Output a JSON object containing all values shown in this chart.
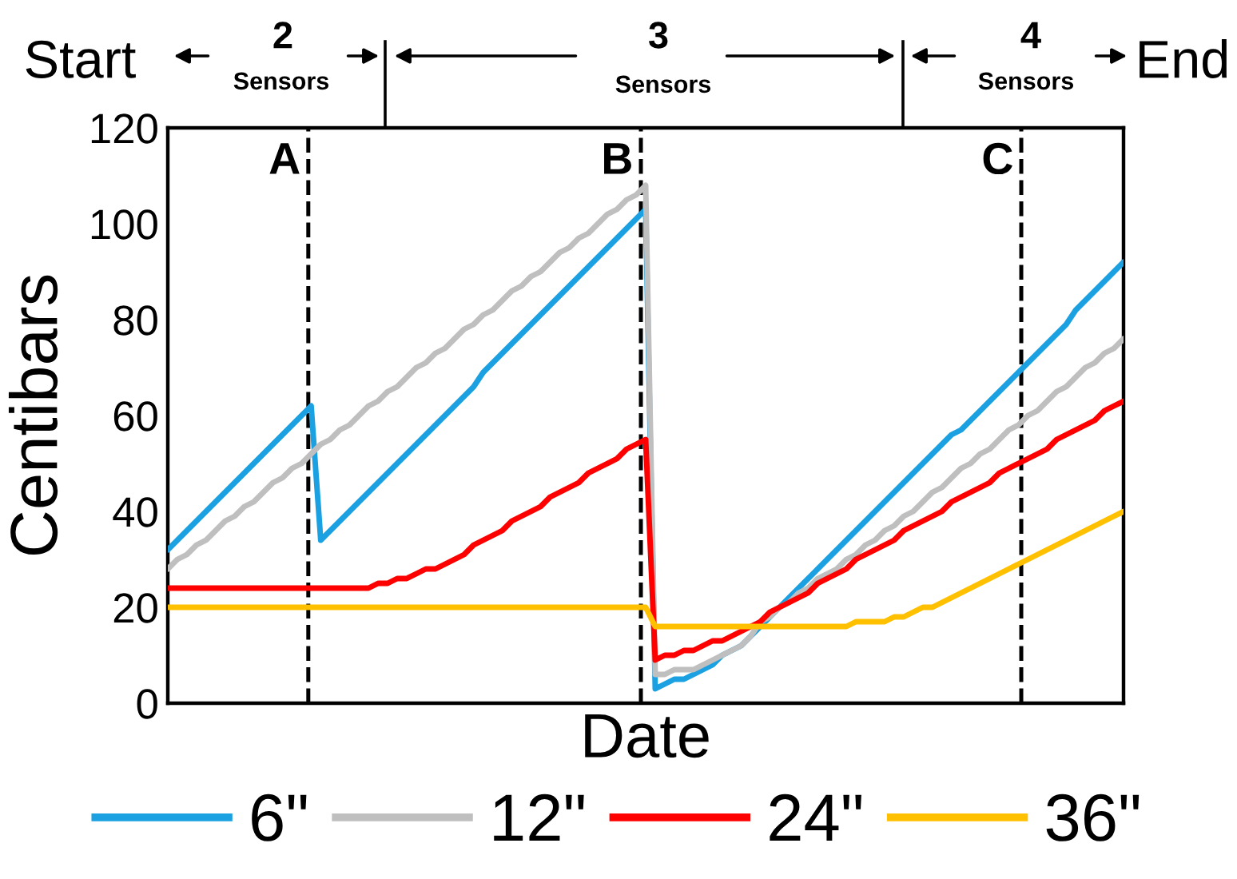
{
  "chart_data": {
    "type": "line",
    "xlabel": "Date",
    "ylabel": "Centibars",
    "categories": [
      null,
      null,
      null,
      null,
      null,
      null,
      null,
      null,
      null,
      null,
      null,
      null,
      null,
      null,
      null,
      null,
      null,
      null,
      null,
      null,
      null,
      null,
      null,
      null,
      null,
      null,
      null,
      null,
      null,
      null,
      null,
      null,
      null,
      null,
      null,
      null,
      null,
      null,
      null,
      null,
      null,
      null,
      null,
      null,
      null,
      null,
      null,
      null,
      null,
      null,
      null,
      null,
      null,
      null,
      null,
      null,
      null,
      null,
      null,
      null,
      null,
      null,
      null,
      null,
      null,
      null,
      null,
      null,
      null,
      null,
      null,
      null,
      null,
      null,
      null,
      null,
      null,
      null,
      null,
      null,
      null,
      null,
      null,
      null,
      null,
      null,
      null,
      null,
      null,
      null,
      null,
      null,
      null,
      null,
      null,
      null,
      null,
      null,
      null,
      null,
      null
    ],
    "ylim": [
      0,
      120
    ],
    "yticks": [
      0,
      20,
      40,
      60,
      80,
      100,
      120
    ],
    "tick_labels": "y",
    "grid": false,
    "legend": "bottom",
    "line_style": "solid",
    "marker": "none",
    "series": [
      {
        "name": "6\"",
        "color": "#1ba1e2",
        "values": [
          32,
          34,
          36,
          38,
          40,
          42,
          44,
          46,
          48,
          50,
          52,
          54,
          56,
          58,
          60,
          62,
          34,
          36,
          38,
          40,
          42,
          44,
          46,
          48,
          50,
          52,
          54,
          56,
          58,
          60,
          62,
          64,
          66,
          69,
          71,
          73,
          75,
          77,
          79,
          81,
          83,
          85,
          87,
          89,
          91,
          93,
          95,
          97,
          99,
          101,
          103,
          3,
          4,
          5,
          5,
          6,
          7,
          8,
          10,
          11,
          12,
          14,
          16,
          18,
          20,
          22,
          24,
          26,
          28,
          30,
          32,
          34,
          36,
          38,
          40,
          42,
          44,
          46,
          48,
          50,
          52,
          54,
          56,
          57,
          59,
          61,
          63,
          65,
          67,
          69,
          71,
          73,
          75,
          77,
          79,
          82,
          84,
          86,
          88,
          90,
          92
        ]
      },
      {
        "name": "12\"",
        "color": "#bfbfbf",
        "values": [
          28,
          30,
          31,
          33,
          34,
          36,
          38,
          39,
          41,
          42,
          44,
          46,
          47,
          49,
          50,
          52,
          54,
          55,
          57,
          58,
          60,
          62,
          63,
          65,
          66,
          68,
          70,
          71,
          73,
          74,
          76,
          78,
          79,
          81,
          82,
          84,
          86,
          87,
          89,
          90,
          92,
          94,
          95,
          97,
          98,
          100,
          102,
          103,
          105,
          106,
          108,
          6,
          6,
          7,
          7,
          7,
          8,
          9,
          10,
          11,
          12,
          14,
          17,
          18,
          20,
          21,
          23,
          24,
          26,
          27,
          28,
          30,
          31,
          33,
          34,
          36,
          37,
          39,
          40,
          42,
          44,
          45,
          47,
          49,
          50,
          52,
          53,
          55,
          57,
          58,
          60,
          61,
          63,
          65,
          66,
          68,
          70,
          71,
          73,
          74,
          76
        ]
      },
      {
        "name": "24\"",
        "color": "#ff0000",
        "values": [
          24,
          24,
          24,
          24,
          24,
          24,
          24,
          24,
          24,
          24,
          24,
          24,
          24,
          24,
          24,
          24,
          24,
          24,
          24,
          24,
          24,
          24,
          25,
          25,
          26,
          26,
          27,
          28,
          28,
          29,
          30,
          31,
          33,
          34,
          35,
          36,
          38,
          39,
          40,
          41,
          43,
          44,
          45,
          46,
          48,
          49,
          50,
          51,
          53,
          54,
          55,
          9,
          10,
          10,
          11,
          11,
          12,
          13,
          13,
          14,
          15,
          16,
          17,
          19,
          20,
          21,
          22,
          23,
          25,
          26,
          27,
          28,
          30,
          31,
          32,
          33,
          34,
          36,
          37,
          38,
          39,
          40,
          42,
          43,
          44,
          45,
          46,
          48,
          49,
          50,
          51,
          52,
          53,
          55,
          56,
          57,
          58,
          59,
          61,
          62,
          63
        ]
      },
      {
        "name": "36\"",
        "color": "#ffc000",
        "values": [
          20,
          20,
          20,
          20,
          20,
          20,
          20,
          20,
          20,
          20,
          20,
          20,
          20,
          20,
          20,
          20,
          20,
          20,
          20,
          20,
          20,
          20,
          20,
          20,
          20,
          20,
          20,
          20,
          20,
          20,
          20,
          20,
          20,
          20,
          20,
          20,
          20,
          20,
          20,
          20,
          20,
          20,
          20,
          20,
          20,
          20,
          20,
          20,
          20,
          20,
          20,
          16,
          16,
          16,
          16,
          16,
          16,
          16,
          16,
          16,
          16,
          16,
          16,
          16,
          16,
          16,
          16,
          16,
          16,
          16,
          16,
          16,
          17,
          17,
          17,
          17,
          18,
          18,
          19,
          20,
          20,
          21,
          22,
          23,
          24,
          25,
          26,
          27,
          28,
          29,
          30,
          31,
          32,
          33,
          34,
          35,
          36,
          37,
          38,
          39,
          40
        ]
      }
    ],
    "annotations": [
      "Start",
      "2",
      "Sensors",
      "3",
      "Sensors",
      "4",
      "Sensors",
      "End",
      "A",
      "B",
      "C"
    ]
  }
}
